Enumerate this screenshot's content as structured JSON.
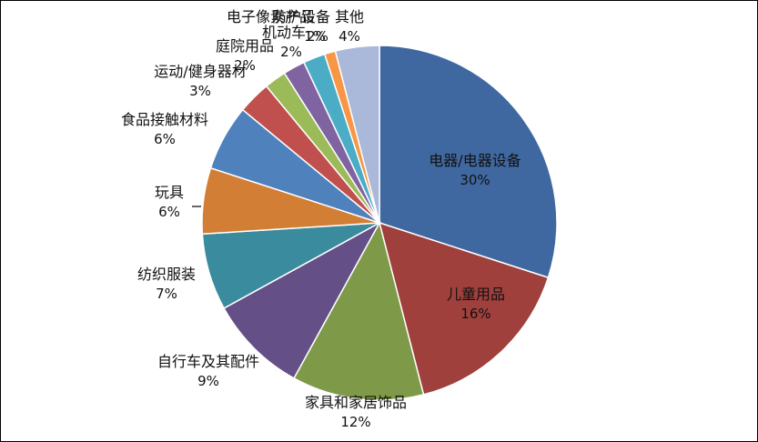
{
  "chart_data": {
    "type": "pie",
    "title": "",
    "slices": [
      {
        "label": "电器/电器设备",
        "value": 30,
        "value_label": "30%",
        "color": "#4068A0"
      },
      {
        "label": "儿童用品",
        "value": 16,
        "value_label": "16%",
        "color": "#A0403D"
      },
      {
        "label": "家具和家居饰品",
        "value": 12,
        "value_label": "12%",
        "color": "#7E9A48"
      },
      {
        "label": "自行车及其配件",
        "value": 9,
        "value_label": "9%",
        "color": "#644F86"
      },
      {
        "label": "纺织服装",
        "value": 7,
        "value_label": "7%",
        "color": "#3A8B9D"
      },
      {
        "label": "玩具",
        "value": 6,
        "value_label": "6%",
        "color": "#D27E34"
      },
      {
        "label": "食品接触材料",
        "value": 6,
        "value_label": "6%",
        "color": "#4F81BD"
      },
      {
        "label": "运动/健身器材",
        "value": 3,
        "value_label": "3%",
        "color": "#C0504D"
      },
      {
        "label": "庭院用品",
        "value": 2,
        "value_label": "2%",
        "color": "#9BBB59"
      },
      {
        "label": "机动车",
        "value": 2,
        "value_label": "2%",
        "color": "#8064A2"
      },
      {
        "label": "电子像素产品",
        "value": 2,
        "value_label": "2%",
        "color": "#4BACC6"
      },
      {
        "label": "防护设备",
        "value": 1,
        "value_label": "1%",
        "color": "#F79646"
      },
      {
        "label": "其他",
        "value": 4,
        "value_label": "4%",
        "color": "#AAB9D9"
      }
    ]
  }
}
